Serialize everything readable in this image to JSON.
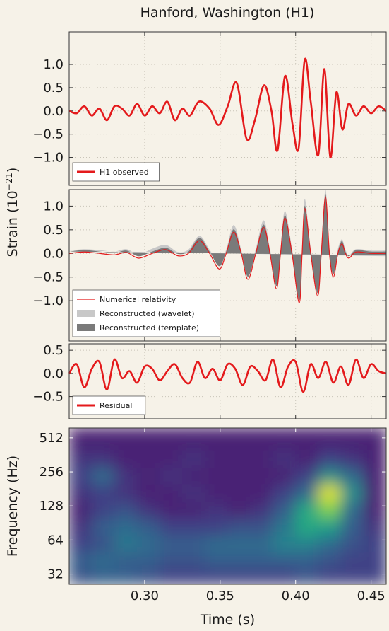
{
  "title": "Hanford, Washington (H1)",
  "chart_data": [
    {
      "type": "line",
      "ylabel_parts": [
        "Strain (10",
        "−21",
        ")"
      ],
      "xlim": [
        0.25,
        0.46
      ],
      "ylim": [
        -1.6,
        1.7
      ],
      "yticks": [
        {
          "value": -1.0,
          "label": "−1.0"
        },
        {
          "value": -0.5,
          "label": "−0.5"
        },
        {
          "value": 0.0,
          "label": "0.0"
        },
        {
          "value": 0.5,
          "label": "0.5"
        },
        {
          "value": 1.0,
          "label": "1.0"
        }
      ],
      "grid": true,
      "legend": "lower left",
      "x": [
        0.25,
        0.255,
        0.26,
        0.265,
        0.27,
        0.275,
        0.28,
        0.285,
        0.29,
        0.295,
        0.3,
        0.305,
        0.31,
        0.315,
        0.32,
        0.325,
        0.33,
        0.336,
        0.343,
        0.349,
        0.355,
        0.361,
        0.3675,
        0.373,
        0.379,
        0.384,
        0.388,
        0.393,
        0.398,
        0.402,
        0.406,
        0.41,
        0.415,
        0.419,
        0.423,
        0.427,
        0.431,
        0.435,
        0.44,
        0.445,
        0.45,
        0.455,
        0.46
      ],
      "series": [
        {
          "name": "H1 observed",
          "color": "#e41a1c",
          "values": [
            0.0,
            -0.05,
            0.1,
            -0.1,
            0.05,
            -0.2,
            0.1,
            0.05,
            -0.1,
            0.15,
            -0.1,
            0.1,
            -0.05,
            0.2,
            -0.2,
            0.05,
            -0.1,
            0.2,
            0.05,
            -0.3,
            0.1,
            0.6,
            -0.6,
            -0.2,
            0.55,
            0.0,
            -0.85,
            0.75,
            -0.3,
            -0.8,
            1.1,
            0.2,
            -0.95,
            0.9,
            -1.0,
            0.4,
            -0.4,
            0.15,
            -0.1,
            0.1,
            -0.05,
            0.1,
            0.0
          ]
        }
      ]
    },
    {
      "type": "line",
      "xlim": [
        0.25,
        0.46
      ],
      "ylim": [
        -1.85,
        1.35
      ],
      "yticks": [
        {
          "value": -1.0,
          "label": "−1.0"
        },
        {
          "value": -0.5,
          "label": "−0.5"
        },
        {
          "value": 0.0,
          "label": "0.0"
        },
        {
          "value": 0.5,
          "label": "0.5"
        },
        {
          "value": 1.0,
          "label": "1.0"
        }
      ],
      "grid": true,
      "legend": "lower left",
      "x": [
        0.25,
        0.26,
        0.27,
        0.28,
        0.288,
        0.296,
        0.305,
        0.314,
        0.322,
        0.329,
        0.3363,
        0.343,
        0.3495,
        0.354,
        0.359,
        0.364,
        0.3684,
        0.3736,
        0.3788,
        0.383,
        0.3873,
        0.39,
        0.3929,
        0.3976,
        0.4024,
        0.4043,
        0.4061,
        0.41,
        0.4146,
        0.417,
        0.4198,
        0.4224,
        0.425,
        0.428,
        0.4307,
        0.433,
        0.4354,
        0.44,
        0.45,
        0.46
      ],
      "series": [
        {
          "name": "Numerical relativity",
          "color": "#e41a1c",
          "values": [
            0.0,
            0.03,
            0.0,
            -0.03,
            0.02,
            -0.1,
            0.0,
            0.08,
            -0.05,
            0.0,
            0.27,
            0.0,
            -0.33,
            0.0,
            0.45,
            0.0,
            -0.55,
            0.0,
            0.55,
            0.0,
            -0.75,
            0.0,
            0.75,
            0.0,
            -1.05,
            0.0,
            0.95,
            0.0,
            -0.9,
            0.0,
            1.2,
            0.0,
            -0.5,
            0.0,
            0.2,
            0.0,
            -0.1,
            0.03,
            0.0,
            0.0
          ]
        },
        {
          "name": "Reconstructed (wavelet)",
          "color": "#c8c8c8",
          "upper": [
            0.06,
            0.09,
            0.07,
            0.04,
            0.09,
            -0.02,
            0.1,
            0.18,
            0.03,
            0.08,
            0.37,
            0.08,
            -0.21,
            0.08,
            0.6,
            0.08,
            -0.4,
            0.1,
            0.7,
            0.1,
            -0.55,
            0.1,
            0.9,
            0.12,
            -0.8,
            0.12,
            1.15,
            0.12,
            -0.7,
            0.12,
            1.35,
            0.1,
            -0.35,
            0.1,
            0.3,
            0.08,
            -0.04,
            0.09,
            0.06,
            0.06
          ],
          "lower": [
            -0.06,
            -0.03,
            -0.07,
            -0.1,
            -0.05,
            -0.18,
            -0.1,
            -0.02,
            -0.13,
            -0.08,
            0.17,
            -0.08,
            -0.45,
            -0.08,
            0.3,
            -0.08,
            -0.7,
            -0.1,
            0.4,
            -0.1,
            -0.95,
            -0.1,
            0.6,
            -0.12,
            -1.3,
            -0.12,
            0.75,
            -0.12,
            -1.1,
            -0.12,
            1.05,
            -0.1,
            -0.65,
            -0.1,
            0.1,
            -0.08,
            -0.16,
            -0.03,
            -0.06,
            -0.06
          ]
        },
        {
          "name": "Reconstructed (template)",
          "color": "#7a7a7a",
          "upper": [
            0.04,
            0.07,
            0.04,
            0.01,
            0.06,
            -0.06,
            0.04,
            0.12,
            -0.01,
            0.04,
            0.33,
            0.04,
            -0.27,
            0.04,
            0.51,
            0.04,
            -0.49,
            0.04,
            0.61,
            0.04,
            -0.69,
            0.04,
            0.81,
            0.04,
            -0.99,
            0.04,
            1.01,
            0.04,
            -0.84,
            0.04,
            1.26,
            0.04,
            -0.44,
            0.04,
            0.26,
            0.04,
            -0.06,
            0.07,
            0.04,
            0.04
          ],
          "lower": [
            -0.04,
            -0.01,
            -0.04,
            -0.07,
            -0.02,
            -0.14,
            -0.04,
            0.04,
            -0.09,
            -0.04,
            0.21,
            -0.04,
            -0.39,
            -0.04,
            0.39,
            -0.04,
            -0.61,
            -0.04,
            0.49,
            -0.04,
            -0.81,
            -0.04,
            0.69,
            -0.04,
            -1.11,
            -0.04,
            0.89,
            -0.04,
            -0.96,
            -0.04,
            1.14,
            -0.04,
            -0.56,
            -0.04,
            0.14,
            -0.04,
            -0.14,
            -0.01,
            -0.04,
            -0.04
          ]
        }
      ]
    },
    {
      "type": "line",
      "xlim": [
        0.25,
        0.46
      ],
      "ylim": [
        -0.98,
        0.64
      ],
      "yticks": [
        {
          "value": -0.5,
          "label": "−0.5"
        },
        {
          "value": 0.0,
          "label": "0.0"
        },
        {
          "value": 0.5,
          "label": "0.5"
        }
      ],
      "grid": true,
      "legend": "lower left",
      "x": [
        0.25,
        0.255,
        0.26,
        0.265,
        0.27,
        0.275,
        0.28,
        0.285,
        0.29,
        0.295,
        0.3,
        0.305,
        0.31,
        0.315,
        0.32,
        0.325,
        0.33,
        0.335,
        0.34,
        0.345,
        0.35,
        0.355,
        0.36,
        0.365,
        0.37,
        0.375,
        0.38,
        0.385,
        0.39,
        0.395,
        0.4,
        0.405,
        0.41,
        0.415,
        0.42,
        0.425,
        0.43,
        0.435,
        0.44,
        0.445,
        0.45,
        0.455,
        0.46
      ],
      "series": [
        {
          "name": "Residual",
          "color": "#e41a1c",
          "values": [
            0.0,
            0.2,
            -0.3,
            0.1,
            0.25,
            -0.35,
            0.3,
            -0.1,
            0.05,
            -0.2,
            0.15,
            0.1,
            -0.15,
            0.05,
            0.2,
            -0.1,
            -0.2,
            0.25,
            -0.1,
            0.1,
            -0.15,
            0.2,
            0.1,
            -0.25,
            0.15,
            0.05,
            -0.15,
            0.3,
            -0.3,
            0.15,
            0.25,
            -0.4,
            0.2,
            -0.1,
            0.25,
            -0.2,
            0.15,
            -0.25,
            0.3,
            -0.1,
            0.2,
            0.05,
            0.0
          ]
        }
      ]
    },
    {
      "type": "heatmap",
      "xlabel": "Time (s)",
      "ylabel": "Frequency (Hz)",
      "xlim": [
        0.25,
        0.46
      ],
      "ylim": [
        26,
        625
      ],
      "yscale": "log2",
      "colormap": "viridis",
      "grid": true,
      "xticks": [
        {
          "value": 0.3,
          "label": "0.30"
        },
        {
          "value": 0.35,
          "label": "0.35"
        },
        {
          "value": 0.4,
          "label": "0.40"
        },
        {
          "value": 0.45,
          "label": "0.45"
        }
      ],
      "yticks": [
        32,
        64,
        128,
        256,
        512
      ],
      "x_bins": [
        0.25,
        0.265,
        0.28,
        0.295,
        0.31,
        0.325,
        0.34,
        0.355,
        0.37,
        0.385,
        0.4,
        0.415,
        0.43,
        0.445,
        0.46
      ],
      "y_bins": [
        26,
        36,
        50,
        70,
        100,
        140,
        200,
        280,
        400,
        625
      ],
      "z": [
        [
          0.25,
          0.3,
          0.3,
          0.25,
          0.2,
          0.2,
          0.2,
          0.2,
          0.2,
          0.2,
          0.25,
          0.2,
          0.2,
          0.2
        ],
        [
          0.3,
          0.35,
          0.3,
          0.3,
          0.25,
          0.25,
          0.3,
          0.3,
          0.3,
          0.3,
          0.3,
          0.25,
          0.2,
          0.2
        ],
        [
          0.2,
          0.25,
          0.4,
          0.35,
          0.3,
          0.3,
          0.35,
          0.35,
          0.35,
          0.45,
          0.45,
          0.35,
          0.25,
          0.2
        ],
        [
          0.15,
          0.3,
          0.35,
          0.3,
          0.2,
          0.2,
          0.2,
          0.25,
          0.25,
          0.4,
          0.6,
          0.55,
          0.3,
          0.15
        ],
        [
          0.1,
          0.2,
          0.25,
          0.15,
          0.1,
          0.1,
          0.15,
          0.1,
          0.15,
          0.3,
          0.6,
          0.8,
          0.35,
          0.1
        ],
        [
          0.15,
          0.2,
          0.15,
          0.1,
          0.1,
          0.15,
          0.1,
          0.1,
          0.1,
          0.2,
          0.35,
          0.95,
          0.5,
          0.1
        ],
        [
          0.2,
          0.35,
          0.15,
          0.1,
          0.15,
          0.1,
          0.1,
          0.1,
          0.1,
          0.1,
          0.2,
          0.5,
          0.35,
          0.1
        ],
        [
          0.15,
          0.15,
          0.1,
          0.1,
          0.1,
          0.15,
          0.1,
          0.1,
          0.1,
          0.15,
          0.1,
          0.2,
          0.15,
          0.1
        ],
        [
          0.1,
          0.1,
          0.1,
          0.1,
          0.1,
          0.1,
          0.1,
          0.1,
          0.1,
          0.1,
          0.1,
          0.1,
          0.1,
          0.1
        ]
      ]
    }
  ]
}
